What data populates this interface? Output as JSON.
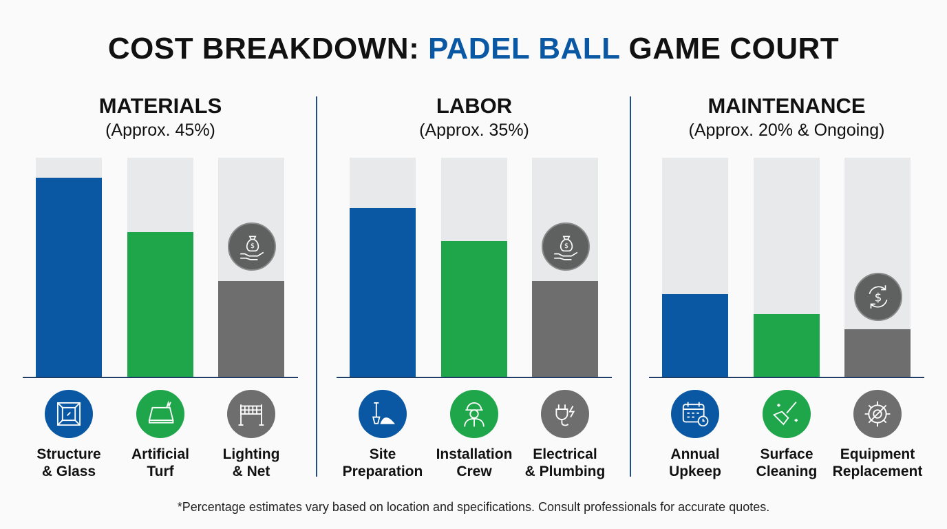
{
  "title": {
    "prefix": "COST BREAKDOWN: ",
    "accent": "PADEL BALL",
    "suffix": " GAME COURT"
  },
  "colors": {
    "blue": "#0a57a4",
    "green": "#1fa64a",
    "gray": "#6e6e6e",
    "track": "#e8e9ea"
  },
  "chart_data": [
    {
      "type": "bar",
      "title": "MATERIALS",
      "subtitle": "(Approx. 45%)",
      "categories": [
        "Structure & Glass",
        "Artificial Turf",
        "Lighting & Net"
      ],
      "values": [
        0.91,
        0.66,
        0.44
      ],
      "ylim": [
        0,
        1
      ],
      "icons": [
        "window-icon",
        "turf-icon",
        "net-icon"
      ],
      "badge_icon": "money-bag-hand-icon"
    },
    {
      "type": "bar",
      "title": "LABOR",
      "subtitle": "(Approx. 35%)",
      "categories": [
        "Site Preparation",
        "Installation Crew",
        "Electrical & Plumbing"
      ],
      "values": [
        0.77,
        0.62,
        0.44
      ],
      "ylim": [
        0,
        1
      ],
      "icons": [
        "shovel-icon",
        "worker-icon",
        "plug-icon"
      ],
      "badge_icon": "money-bag-hand-icon"
    },
    {
      "type": "bar",
      "title": "MAINTENANCE",
      "subtitle": "(Approx. 20% & Ongoing)",
      "categories": [
        "Annual Upkeep",
        "Surface Cleaning",
        "Equipment Replacement"
      ],
      "values": [
        0.38,
        0.29,
        0.22
      ],
      "ylim": [
        0,
        1
      ],
      "icons": [
        "calendar-clock-icon",
        "broom-icon",
        "gear-wrench-icon"
      ],
      "badge_icon": "dollar-cycle-icon"
    }
  ],
  "labels": [
    [
      [
        "Structure",
        "& Glass"
      ],
      [
        "Artificial",
        "Turf"
      ],
      [
        "Lighting",
        "& Net"
      ]
    ],
    [
      [
        "Site",
        "Preparation"
      ],
      [
        "Installation",
        "Crew"
      ],
      [
        "Electrical",
        "& Plumbing"
      ]
    ],
    [
      [
        "Annual",
        "Upkeep"
      ],
      [
        "Surface",
        "Cleaning"
      ],
      [
        "Equipment",
        "Replacement"
      ]
    ]
  ],
  "footnote": "*Percentage estimates vary based on location and specifications. Consult professionals for accurate quotes."
}
